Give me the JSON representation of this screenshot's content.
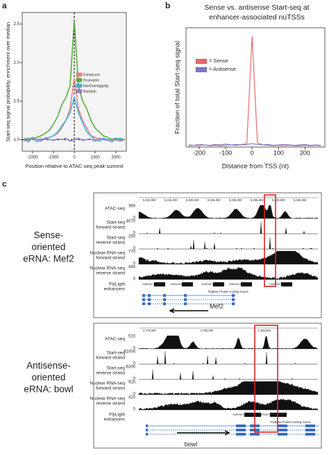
{
  "chart_data": [
    {
      "type": "line",
      "panel": "a",
      "x": [
        -2400,
        -2200,
        -2000,
        -1800,
        -1600,
        -1400,
        -1200,
        -1000,
        -800,
        -600,
        -400,
        -200,
        0,
        200,
        400,
        600,
        800,
        1000,
        1200,
        1400,
        1600,
        1800,
        2000,
        2200,
        2400
      ],
      "xlim": [
        -2500,
        2500
      ],
      "xticks": [
        -2000,
        -1000,
        0,
        1000,
        2000
      ],
      "ylim": [
        0.85,
        2.65
      ],
      "yticks": [
        {
          "value": 1,
          "label": "1.0"
        },
        {
          "value": 1.5,
          "label": "1.5"
        },
        {
          "value": 2,
          "label": "2.0"
        },
        {
          "value": 2.5,
          "label": "2.5"
        }
      ],
      "xlabel": "Position relative to ATAC-seq peak summit",
      "ylabel": "Start-seq signal probability, enrichment over median",
      "legend": "right",
      "hline": 1,
      "vline": 0,
      "series": [
        {
          "name": "Enhancers",
          "color": "#e8828a",
          "values": [
            1.0,
            0.98,
            1.02,
            1.0,
            1.01,
            1.0,
            1.03,
            1.05,
            1.08,
            1.15,
            1.25,
            1.4,
            1.8,
            1.4,
            1.25,
            1.15,
            1.05,
            1.03,
            1.0,
            1.02,
            1.0,
            0.99,
            1.01,
            1.0,
            1.0
          ]
        },
        {
          "name": "Promoters",
          "color": "#5aae3c",
          "values": [
            1.0,
            1.02,
            1.0,
            1.03,
            1.05,
            1.08,
            1.12,
            1.2,
            1.3,
            1.45,
            1.55,
            1.7,
            2.55,
            1.7,
            1.5,
            1.4,
            1.25,
            1.15,
            1.1,
            1.05,
            1.03,
            1.0,
            1.02,
            1.0,
            1.0
          ]
        },
        {
          "name": "NonOverlapping",
          "color": "#3fb8d8",
          "values": [
            0.98,
            1.0,
            1.03,
            0.97,
            1.0,
            1.02,
            1.03,
            1.05,
            1.1,
            1.18,
            1.25,
            1.35,
            1.55,
            1.35,
            1.22,
            1.1,
            1.05,
            1.0,
            0.98,
            1.02,
            1.0,
            0.97,
            1.0,
            1.02,
            1.0
          ]
        },
        {
          "name": "Random",
          "color": "#9a7fd0",
          "values": [
            1.02,
            0.97,
            1.03,
            1.0,
            0.98,
            1.02,
            1.0,
            0.99,
            1.01,
            1.0,
            1.02,
            0.98,
            1.0,
            1.02,
            0.99,
            1.0,
            1.01,
            0.98,
            1.02,
            1.0,
            0.99,
            1.01,
            1.0,
            0.98,
            1.0
          ]
        }
      ]
    },
    {
      "type": "line",
      "panel": "b",
      "title": "Sense vs. antisense Start-seq at enhancer-associated nuTSSs",
      "x": [
        -240,
        -220,
        -200,
        -180,
        -160,
        -140,
        -120,
        -100,
        -80,
        -60,
        -40,
        -20,
        0,
        20,
        40,
        60,
        80,
        100,
        120,
        140,
        160,
        180,
        200,
        220,
        240,
        260
      ],
      "xlim": [
        -250,
        275
      ],
      "xticks": [
        -200,
        -100,
        0,
        100,
        200
      ],
      "ylim": [
        0,
        0.28
      ],
      "xlabel": "Distance from TSS (nt)",
      "ylabel": "Fraction of total Start-seq signal",
      "legend": "upper left",
      "series": [
        {
          "name": "= Sense",
          "color": "#e86a6a",
          "values": [
            0.003,
            0.004,
            0.003,
            0.005,
            0.003,
            0.004,
            0.003,
            0.004,
            0.005,
            0.004,
            0.006,
            0.008,
            0.26,
            0.01,
            0.005,
            0.004,
            0.003,
            0.004,
            0.003,
            0.004,
            0.003,
            0.003,
            0.004,
            0.003,
            0.004,
            0.003
          ]
        },
        {
          "name": "= Antisense",
          "color": "#7b78c8",
          "values": [
            0.005,
            0.004,
            0.006,
            0.005,
            0.004,
            0.006,
            0.005,
            0.007,
            0.005,
            0.006,
            0.005,
            0.006,
            0.008,
            0.006,
            0.005,
            0.006,
            0.004,
            0.005,
            0.006,
            0.005,
            0.004,
            0.005,
            0.006,
            0.004,
            0.005,
            0.004
          ]
        }
      ]
    }
  ],
  "panel_c": {
    "letter": "c",
    "regions": [
      {
        "label_lines": [
          "Sense-",
          "oriented",
          "eRNA: Mef2"
        ],
        "ruler": [
          "5,010,000",
          "5,015,000",
          "5,020,000",
          "5,025,000",
          "5,030,000",
          "5,035,000",
          "5,040,000",
          "5,045,000"
        ],
        "tracks": [
          {
            "label_lines": [
              "ATAC-seq"
            ],
            "max": 360,
            "min": 0
          },
          {
            "label_lines": [
              "Start-seq",
              "forward strand"
            ],
            "max": 4070,
            "min": 0
          },
          {
            "label_lines": [
              "Start-seq",
              "reverse strand"
            ],
            "max": 250,
            "min": 0
          },
          {
            "label_lines": [
              "Nuclear RNA-seq",
              "forward strand"
            ],
            "max": 770,
            "min": 0
          },
          {
            "label_lines": [
              "Nuclear RNA-seq",
              "reverse strand"
            ],
            "max": 440,
            "min": 0
          }
        ],
        "enhancer_label_lines": [
          "FlyLight",
          "enhancers"
        ],
        "enhancers": [
          "GMR43C01",
          "GMR44D04",
          "GMR45C02",
          "GMR43C03",
          "GMR43E04"
        ],
        "gene_track": "FlyBase Protein-Coding Genes",
        "gene": "Mef2"
      },
      {
        "label_lines": [
          "Antisense-",
          "oriented",
          "eRNA: bowl"
        ],
        "ruler": [
          "2,775,000",
          "2,780,000",
          "2,785,000"
        ],
        "tracks": [
          {
            "label_lines": [
              "ATAC-seq"
            ],
            "max": 510,
            "min": 0
          },
          {
            "label_lines": [
              "Start-seq",
              "forward strand"
            ],
            "max": 81000,
            "min": 0
          },
          {
            "label_lines": [
              "Start-seq",
              "reverse strand"
            ],
            "max": 6200,
            "min": 0
          },
          {
            "label_lines": [
              "Nuclear RNA-seq",
              "forward strand"
            ],
            "max": 910,
            "min": 0
          },
          {
            "label_lines": [
              "Nuclear RNA-seq",
              "reverse strand"
            ],
            "max": 410,
            "min": 0
          }
        ],
        "enhancer_label_lines": [
          "FlyLight",
          "enhancers"
        ],
        "enhancers": [
          "GMR35G10",
          "GMR35C04"
        ],
        "gene_track": "FlyBase Protein-Coding Genes",
        "gene": "bowl"
      }
    ]
  },
  "letters": [
    "a",
    "b"
  ]
}
